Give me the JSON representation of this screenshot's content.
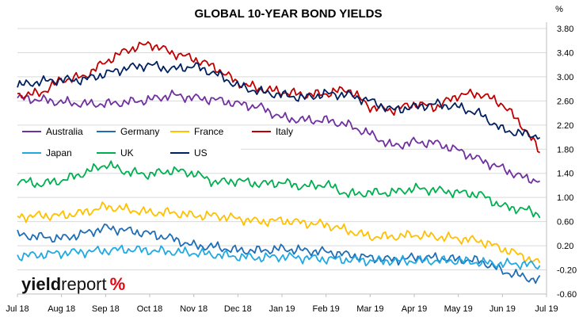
{
  "chart_data": {
    "type": "line",
    "title": "GLOBAL 10-YEAR BOND YIELDS",
    "unit": "%",
    "ylim": [
      -0.6,
      4.0
    ],
    "yticks": [
      "3.80",
      "3.40",
      "3.00",
      "2.60",
      "2.20",
      "1.80",
      "1.40",
      "1.00",
      "0.60",
      "0.20",
      "-0.20",
      "-0.60"
    ],
    "ytick_values": [
      3.8,
      3.4,
      3.0,
      2.6,
      2.2,
      1.8,
      1.4,
      1.0,
      0.6,
      0.2,
      -0.2,
      -0.6
    ],
    "xticks": [
      "Jul 18",
      "Aug 18",
      "Sep 18",
      "Oct 18",
      "Nov 18",
      "Dec 18",
      "Jan 19",
      "Feb 19",
      "Mar 19",
      "Apr 19",
      "May 19",
      "Jun 19",
      "Jul 19"
    ],
    "grid": "horizontal",
    "legend_position": "top-left",
    "x_months": [
      0,
      0.5,
      1,
      1.5,
      2,
      2.5,
      3,
      3.5,
      4,
      4.5,
      5,
      5.5,
      6,
      6.5,
      7,
      7.5,
      8,
      8.5,
      9,
      9.5,
      10,
      10.5,
      11,
      11.5,
      11.85
    ],
    "series": [
      {
        "name": "Australia",
        "color": "#7030a0",
        "values": [
          2.65,
          2.62,
          2.58,
          2.55,
          2.55,
          2.58,
          2.62,
          2.7,
          2.65,
          2.62,
          2.55,
          2.5,
          2.32,
          2.28,
          2.28,
          2.2,
          2.05,
          1.85,
          1.92,
          1.9,
          1.78,
          1.62,
          1.48,
          1.32,
          1.28
        ]
      },
      {
        "name": "Germany",
        "color": "#1f6eb5",
        "values": [
          0.38,
          0.35,
          0.32,
          0.4,
          0.5,
          0.45,
          0.4,
          0.32,
          0.2,
          0.18,
          0.12,
          0.12,
          0.15,
          0.12,
          0.1,
          0.05,
          0.0,
          -0.03,
          0.0,
          0.0,
          -0.03,
          -0.05,
          -0.22,
          -0.32,
          -0.38
        ]
      },
      {
        "name": "France",
        "color": "#ffc000",
        "values": [
          0.68,
          0.7,
          0.7,
          0.75,
          0.85,
          0.8,
          0.75,
          0.75,
          0.7,
          0.7,
          0.65,
          0.6,
          0.62,
          0.58,
          0.55,
          0.45,
          0.35,
          0.35,
          0.38,
          0.35,
          0.32,
          0.28,
          0.15,
          0.02,
          -0.1
        ]
      },
      {
        "name": "Italy",
        "color": "#c00000",
        "values": [
          2.7,
          2.72,
          2.95,
          3.0,
          3.25,
          3.45,
          3.55,
          3.4,
          3.3,
          3.15,
          2.9,
          2.8,
          2.75,
          2.7,
          2.72,
          2.8,
          2.5,
          2.45,
          2.55,
          2.5,
          2.7,
          2.72,
          2.55,
          2.15,
          1.75
        ]
      },
      {
        "name": "Japan",
        "color": "#21a9e1",
        "values": [
          0.03,
          0.05,
          0.08,
          0.1,
          0.12,
          0.14,
          0.12,
          0.1,
          0.08,
          0.05,
          0.02,
          0.0,
          0.02,
          0.0,
          -0.02,
          -0.03,
          -0.05,
          -0.05,
          -0.05,
          -0.05,
          -0.05,
          -0.08,
          -0.1,
          -0.1,
          -0.15
        ]
      },
      {
        "name": "UK",
        "color": "#00b050",
        "values": [
          1.28,
          1.22,
          1.28,
          1.4,
          1.55,
          1.42,
          1.38,
          1.45,
          1.4,
          1.25,
          1.28,
          1.22,
          1.25,
          1.18,
          1.22,
          1.05,
          1.08,
          1.08,
          1.15,
          1.12,
          1.08,
          1.05,
          0.85,
          0.8,
          0.72
        ]
      },
      {
        "name": "US",
        "color": "#002060",
        "values": [
          2.85,
          2.92,
          2.95,
          2.95,
          3.05,
          3.15,
          3.2,
          3.12,
          3.18,
          3.05,
          2.85,
          2.75,
          2.7,
          2.65,
          2.72,
          2.7,
          2.6,
          2.45,
          2.5,
          2.55,
          2.5,
          2.38,
          2.12,
          2.05,
          2.02
        ]
      }
    ]
  },
  "logo": {
    "part_a": "yield",
    "part_b": "report",
    "part_c": "%"
  }
}
